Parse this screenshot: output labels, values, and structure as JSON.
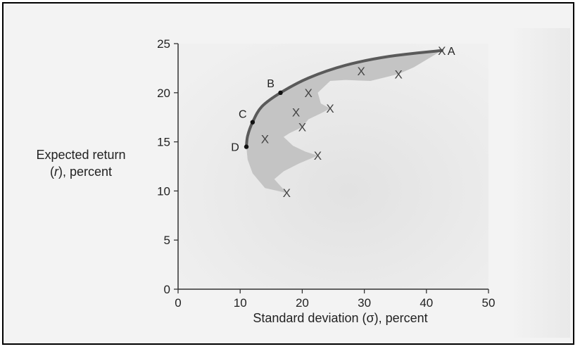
{
  "chart_data": {
    "type": "scatter",
    "title": "",
    "xlabel": "Standard deviation (σ), percent",
    "ylabel_line1": "Expected return",
    "ylabel_line2_var": "r",
    "ylabel_line2_rest": ", percent",
    "xlim": [
      0,
      50
    ],
    "ylim": [
      0,
      25
    ],
    "x_ticks": [
      0,
      10,
      20,
      30,
      40,
      50
    ],
    "y_ticks": [
      0,
      5,
      10,
      15,
      20,
      25
    ],
    "grid": false,
    "frontier": {
      "name": "",
      "points": [
        {
          "x": 11,
          "y": 14.5
        },
        {
          "x": 11.2,
          "y": 15.6
        },
        {
          "x": 12,
          "y": 17
        },
        {
          "x": 13.5,
          "y": 18.6
        },
        {
          "x": 16.5,
          "y": 20
        },
        {
          "x": 21,
          "y": 21.5
        },
        {
          "x": 27,
          "y": 22.8
        },
        {
          "x": 34,
          "y": 23.7
        },
        {
          "x": 42.5,
          "y": 24.3
        }
      ]
    },
    "labeled_points": [
      {
        "label": "A",
        "x": 42.5,
        "y": 24.3
      },
      {
        "label": "B",
        "x": 16.5,
        "y": 20
      },
      {
        "label": "C",
        "x": 12,
        "y": 17
      },
      {
        "label": "D",
        "x": 11,
        "y": 14.5
      }
    ],
    "x_markers": [
      {
        "x": 42.5,
        "y": 24.3
      },
      {
        "x": 29.5,
        "y": 22.2
      },
      {
        "x": 35.5,
        "y": 21.9
      },
      {
        "x": 21,
        "y": 20
      },
      {
        "x": 24.5,
        "y": 18.4
      },
      {
        "x": 19,
        "y": 18
      },
      {
        "x": 20,
        "y": 16.5
      },
      {
        "x": 14,
        "y": 15.3
      },
      {
        "x": 22.5,
        "y": 13.6
      },
      {
        "x": 17.5,
        "y": 9.8
      }
    ],
    "feasible_region": [
      {
        "x": 11,
        "y": 14.5
      },
      {
        "x": 11.2,
        "y": 15.6
      },
      {
        "x": 12,
        "y": 17
      },
      {
        "x": 13.5,
        "y": 18.6
      },
      {
        "x": 16.5,
        "y": 20
      },
      {
        "x": 21,
        "y": 21.5
      },
      {
        "x": 27,
        "y": 22.8
      },
      {
        "x": 34,
        "y": 23.7
      },
      {
        "x": 42.5,
        "y": 24.3
      },
      {
        "x": 38,
        "y": 22.6
      },
      {
        "x": 35.5,
        "y": 21.9
      },
      {
        "x": 31,
        "y": 21.2
      },
      {
        "x": 27,
        "y": 21.3
      },
      {
        "x": 24.5,
        "y": 21.2
      },
      {
        "x": 22.5,
        "y": 20
      },
      {
        "x": 23,
        "y": 18.9
      },
      {
        "x": 24.5,
        "y": 18.4
      },
      {
        "x": 23,
        "y": 17.9
      },
      {
        "x": 21,
        "y": 17.3
      },
      {
        "x": 20,
        "y": 16.5
      },
      {
        "x": 18,
        "y": 15.9
      },
      {
        "x": 17,
        "y": 15.5
      },
      {
        "x": 18.5,
        "y": 14.6
      },
      {
        "x": 20.5,
        "y": 14
      },
      {
        "x": 22.5,
        "y": 13.6
      },
      {
        "x": 19.5,
        "y": 12.8
      },
      {
        "x": 17,
        "y": 12
      },
      {
        "x": 15.5,
        "y": 11.2
      },
      {
        "x": 17.5,
        "y": 9.8
      },
      {
        "x": 14,
        "y": 10.3
      },
      {
        "x": 12,
        "y": 11.8
      },
      {
        "x": 11.2,
        "y": 13.2
      }
    ],
    "colors": {
      "frontier": "#5a5a5a",
      "region": "#c4c4c4",
      "plot_bg": "#e9e9e9",
      "axis": "#333333"
    }
  }
}
